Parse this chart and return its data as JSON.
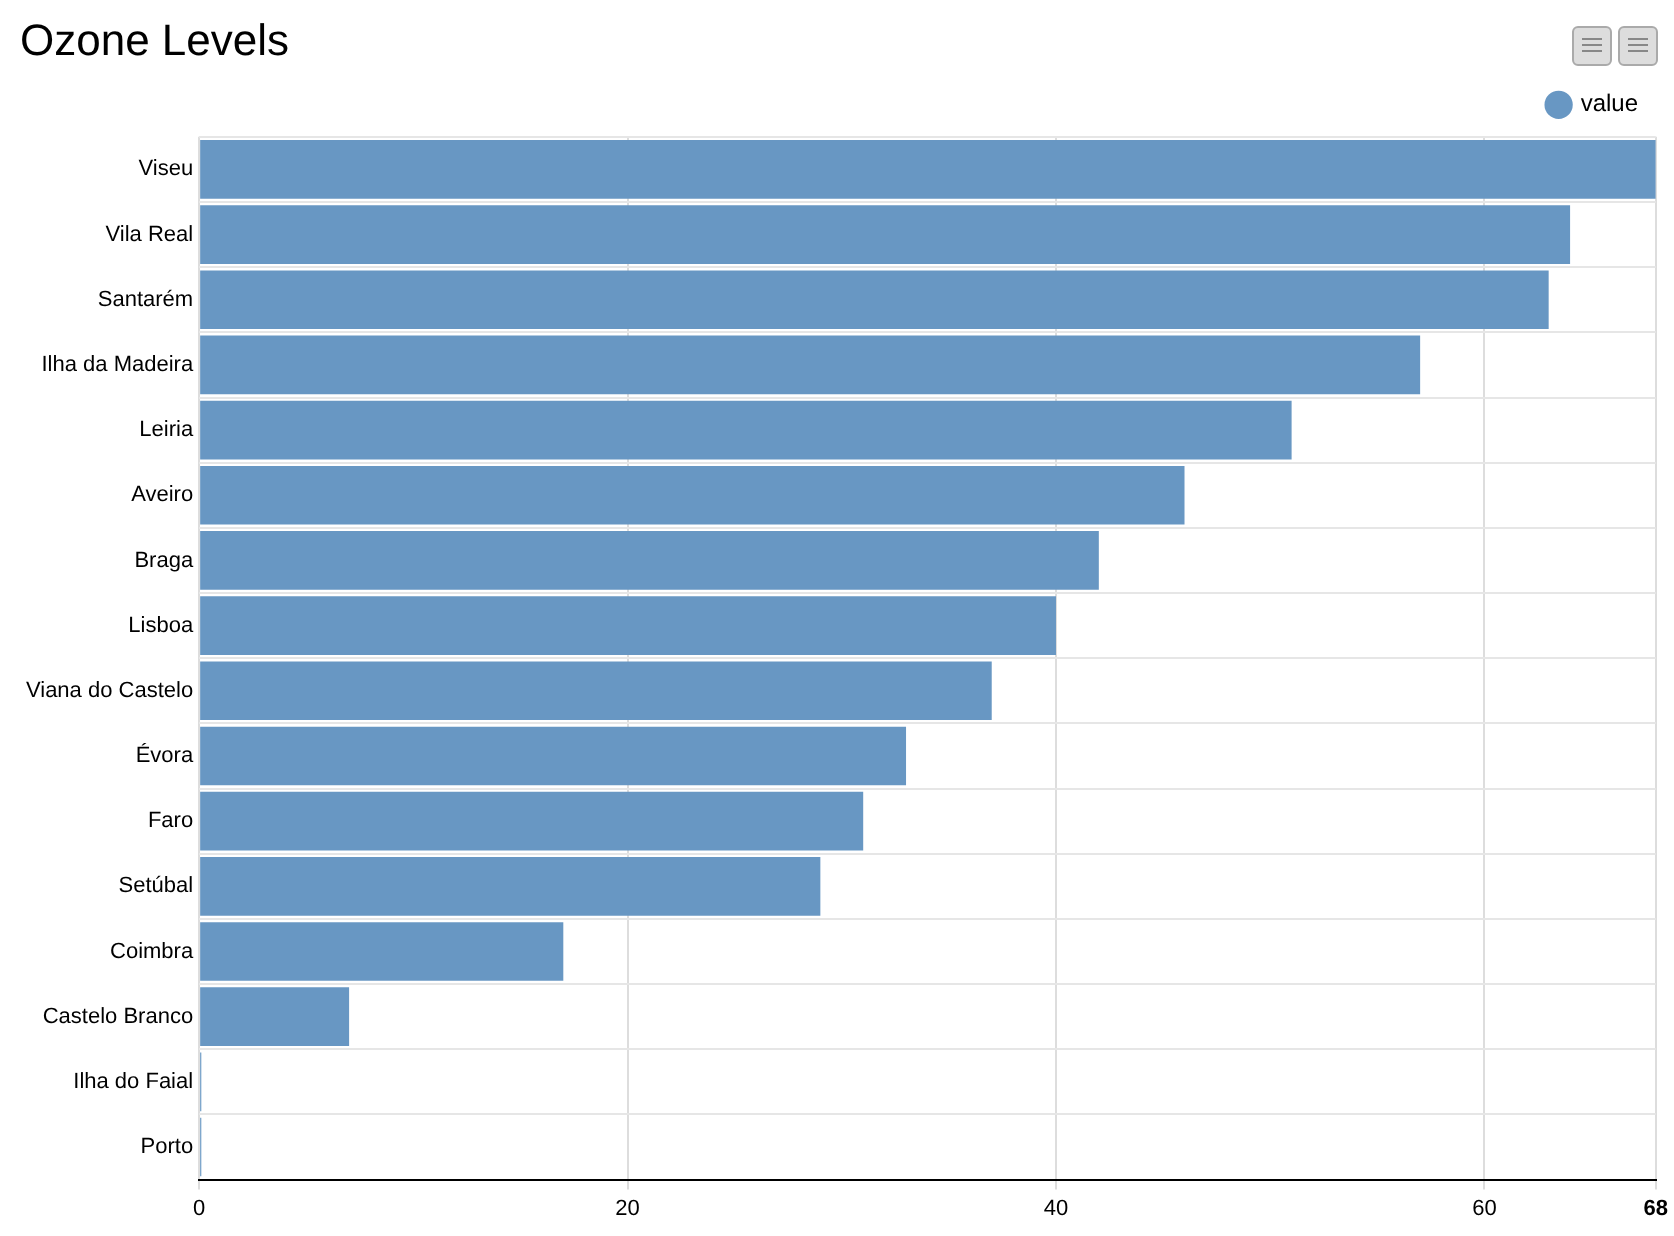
{
  "chart_data": {
    "type": "bar",
    "title": "Ozone Levels",
    "orientation": "horizontal",
    "categories": [
      "Viseu",
      "Vila Real",
      "Santarém",
      "Ilha da Madeira",
      "Leiria",
      "Aveiro",
      "Braga",
      "Lisboa",
      "Viana do Castelo",
      "Évora",
      "Faro",
      "Setúbal",
      "Coimbra",
      "Castelo Branco",
      "Ilha do Faial",
      "Porto"
    ],
    "series": [
      {
        "name": "value",
        "color": "#6897c3",
        "values": [
          68,
          64,
          63,
          57,
          51,
          46,
          42,
          40,
          37,
          33,
          31,
          29,
          17,
          7,
          0.1,
          0.1
        ]
      }
    ],
    "xlim": [
      0,
      68
    ],
    "xticks": [
      0,
      20,
      40,
      60,
      68
    ],
    "grid": true,
    "legend": "top right"
  }
}
